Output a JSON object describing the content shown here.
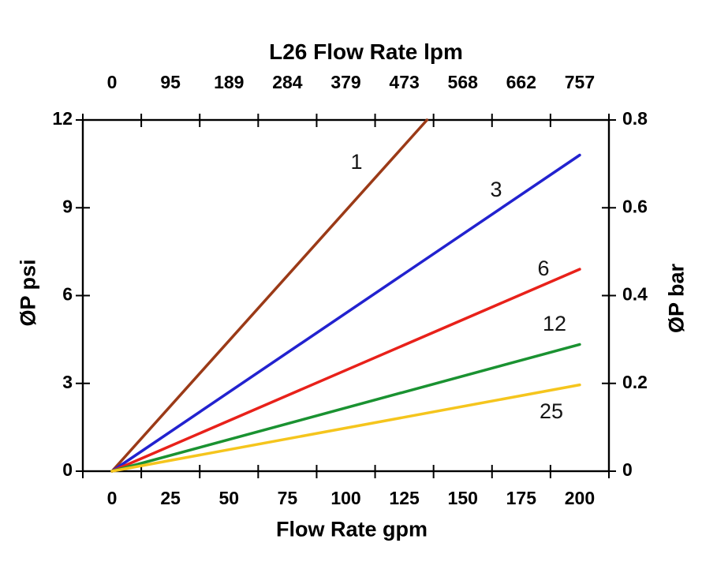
{
  "chart_data": {
    "type": "line",
    "top_axis_title": "L26 Flow Rate lpm",
    "xlabel": "Flow Rate gpm",
    "ylabel_left": "ØP psi",
    "ylabel_right": "ØP bar",
    "x_gpm_ticks": [
      0,
      25,
      50,
      75,
      100,
      125,
      150,
      175,
      200
    ],
    "x_lpm_ticks": [
      0,
      95,
      189,
      284,
      379,
      473,
      568,
      662,
      757
    ],
    "y_psi_ticks": [
      0,
      3,
      6,
      9,
      12
    ],
    "y_bar_ticks": [
      0,
      0.2,
      0.4,
      0.6,
      0.8
    ],
    "xlim_gpm": [
      0,
      200
    ],
    "ylim_psi": [
      0,
      12
    ],
    "ylim_bar": [
      0,
      0.8
    ],
    "grid": false,
    "legend_position": "inline-labels-on-lines",
    "axis_color": "#000000",
    "background_color": "#ffffff",
    "series": [
      {
        "name": "1",
        "color": "#9b3a17",
        "x": [
          0,
          134.7
        ],
        "y": [
          0,
          12
        ]
      },
      {
        "name": "3",
        "color": "#2222cf",
        "x": [
          0,
          200
        ],
        "y": [
          0,
          10.8
        ]
      },
      {
        "name": "6",
        "color": "#e8211a",
        "x": [
          0,
          200
        ],
        "y": [
          0,
          6.9
        ]
      },
      {
        "name": "12",
        "color": "#1a9231",
        "x": [
          0,
          200
        ],
        "y": [
          0,
          4.33
        ]
      },
      {
        "name": "25",
        "color": "#f5c51d",
        "x": [
          0,
          200
        ],
        "y": [
          0,
          2.95
        ]
      }
    ]
  }
}
